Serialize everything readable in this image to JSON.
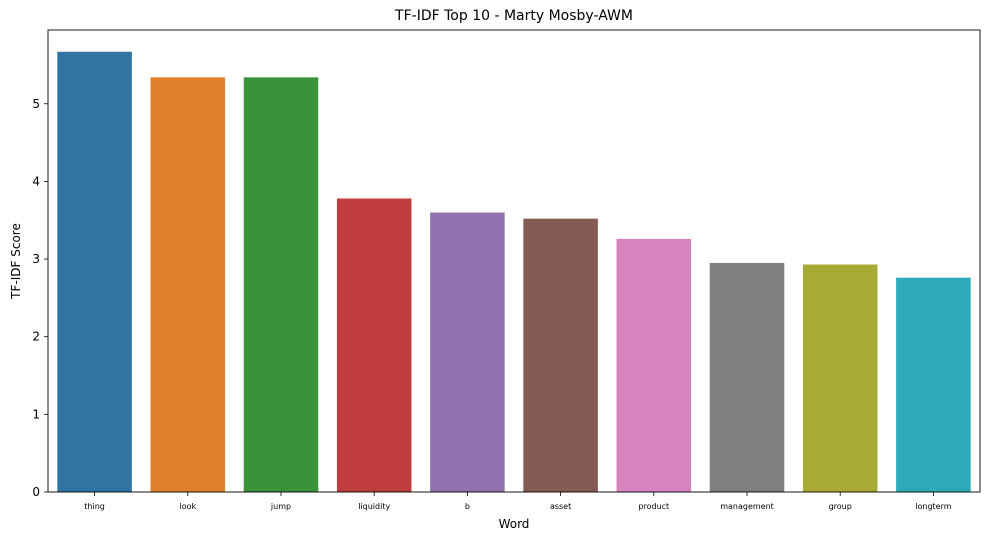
{
  "chart_data": {
    "type": "bar",
    "title": "TF-IDF Top 10 - Marty Mosby-AWM",
    "xlabel": "Word",
    "ylabel": "TF-IDF Score",
    "categories": [
      "thing",
      "look",
      "jump",
      "liquidity",
      "b",
      "asset",
      "product",
      "management",
      "group",
      "longterm"
    ],
    "values": [
      5.67,
      5.34,
      5.34,
      3.78,
      3.6,
      3.52,
      3.26,
      2.95,
      2.93,
      2.76
    ],
    "colors": [
      "#3274a1",
      "#e1812c",
      "#3a923a",
      "#c03d3e",
      "#9372b2",
      "#845b53",
      "#d684bd",
      "#7f7f7f",
      "#a9aa35",
      "#2eabb8"
    ],
    "ylim": [
      0,
      5.95
    ],
    "yticks": [
      0,
      1,
      2,
      3,
      4,
      5
    ],
    "grid": false,
    "legend": "none"
  }
}
